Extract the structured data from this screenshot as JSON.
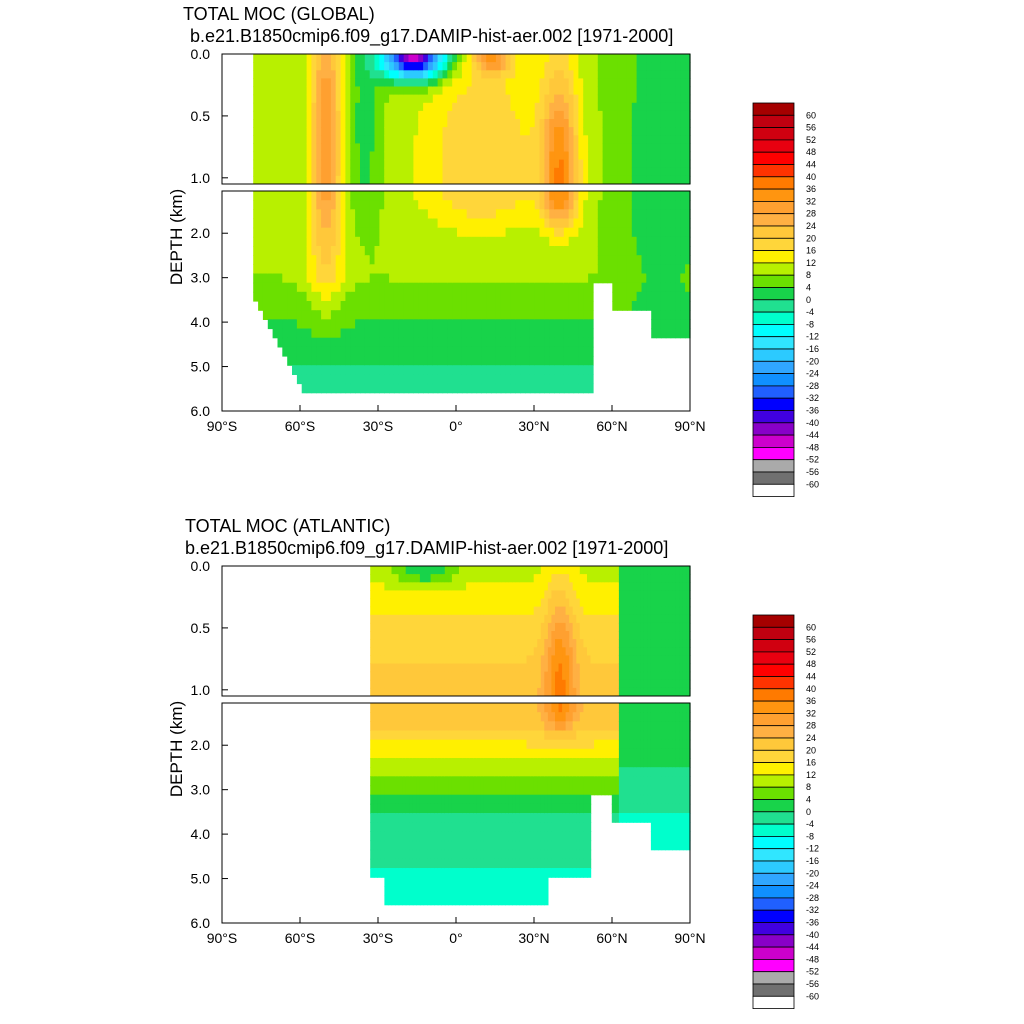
{
  "chart_data": [
    {
      "type": "heatmap",
      "title": "TOTAL MOC (GLOBAL)",
      "subtitle": "b.e21.B1850cmip6.f09_g17.DAMIP-hist-aer.002 [1971-2000]",
      "ylabel": "DEPTH (km)",
      "xlim": [
        -90,
        90
      ],
      "ylim": [
        0,
        6
      ],
      "x_ticks": [
        "90°S",
        "60°S",
        "30°S",
        "0°",
        "30°N",
        "60°N",
        "90°N"
      ],
      "y_ticks_upper": [
        "0.0",
        "0.5",
        "1.0"
      ],
      "y_ticks_lower": [
        "2.0",
        "3.0",
        "4.0",
        "5.0",
        "6.0"
      ],
      "ocean_lat_range": [
        -78,
        90
      ],
      "features": [
        {
          "center": [
            -50,
            0.6
          ],
          "value": 30
        },
        {
          "center": [
            -16,
            0.03
          ],
          "value": -48
        },
        {
          "center": [
            14,
            0.05
          ],
          "value": 30
        },
        {
          "center": [
            40,
            1.0
          ],
          "value": 34
        },
        {
          "center": [
            -40,
            4.0
          ],
          "value": 6
        }
      ]
    },
    {
      "type": "heatmap",
      "title": "TOTAL MOC (ATLANTIC)",
      "subtitle": "b.e21.B1850cmip6.f09_g17.DAMIP-hist-aer.002 [1971-2000]",
      "ylabel": "DEPTH (km)",
      "xlim": [
        -90,
        90
      ],
      "ylim": [
        0,
        6
      ],
      "x_ticks": [
        "90°S",
        "60°S",
        "30°S",
        "0°",
        "30°N",
        "60°N",
        "90°N"
      ],
      "y_ticks_upper": [
        "0.0",
        "0.5",
        "1.0"
      ],
      "y_ticks_lower": [
        "2.0",
        "3.0",
        "4.0",
        "5.0",
        "6.0"
      ],
      "ocean_lat_range": [
        -33,
        90
      ],
      "features": [
        {
          "center": [
            -10,
            0.05
          ],
          "value": -6
        },
        {
          "center": [
            40,
            0.9
          ],
          "value": 34
        },
        {
          "center": [
            5,
            1.5
          ],
          "value": 22
        },
        {
          "center": [
            10,
            4.5
          ],
          "value": -4
        }
      ]
    }
  ],
  "colorbar": {
    "labels": [
      "60",
      "56",
      "52",
      "48",
      "44",
      "40",
      "36",
      "32",
      "28",
      "24",
      "20",
      "16",
      "12",
      "8",
      "4",
      "0",
      "-4",
      "-8",
      "-12",
      "-16",
      "-20",
      "-24",
      "-28",
      "-32",
      "-36",
      "-40",
      "-44",
      "-48",
      "-52",
      "-56",
      "-60"
    ],
    "colors": [
      "#a50000",
      "#c00010",
      "#d00010",
      "#e80010",
      "#ff0000",
      "#ff3300",
      "#ff7a00",
      "#ff9510",
      "#ffa030",
      "#ffb043",
      "#ffc83a",
      "#ffd63a",
      "#fff000",
      "#b8f000",
      "#6be000",
      "#18d34a",
      "#20e090",
      "#00ffcc",
      "#00ffff",
      "#30e6ff",
      "#2ccaff",
      "#30a6ff",
      "#1090ff",
      "#2060ff",
      "#0000ff",
      "#4000e0",
      "#8800c8",
      "#cc00cc",
      "#ff00ff",
      "#aaaaaa",
      "#707070",
      "#ffffff"
    ]
  }
}
